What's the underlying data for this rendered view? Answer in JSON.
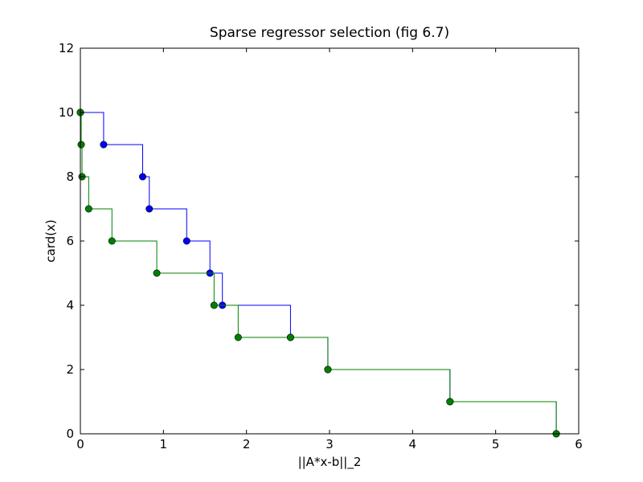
{
  "chart_data": {
    "type": "line",
    "title": "Sparse regressor selection (fig 6.7)",
    "xlabel": "||A*x-b||_2",
    "ylabel": "card(x)",
    "xlim": [
      0,
      6
    ],
    "ylim": [
      0,
      12
    ],
    "xticks": [
      "0",
      "1",
      "2",
      "3",
      "4",
      "5",
      "6"
    ],
    "yticks": [
      "0",
      "2",
      "4",
      "6",
      "8",
      "10",
      "12"
    ],
    "grid": false,
    "legend": false,
    "series": [
      {
        "color": "#0000ff",
        "markers": true,
        "x": [
          0.0,
          0.28,
          0.75,
          0.83,
          1.28,
          1.56,
          1.71,
          2.53,
          2.98,
          4.45,
          5.73
        ],
        "y": [
          10,
          9,
          8,
          7,
          6,
          5,
          4,
          3,
          2,
          1,
          0
        ]
      },
      {
        "color": "#008000",
        "markers": true,
        "x": [
          0.0,
          0.01,
          0.02,
          0.1,
          0.38,
          0.92,
          1.61,
          1.9,
          2.53,
          2.98,
          4.45,
          5.73
        ],
        "y": [
          10,
          9,
          8,
          7,
          6,
          5,
          4,
          3,
          3,
          2,
          1,
          0
        ]
      }
    ]
  }
}
